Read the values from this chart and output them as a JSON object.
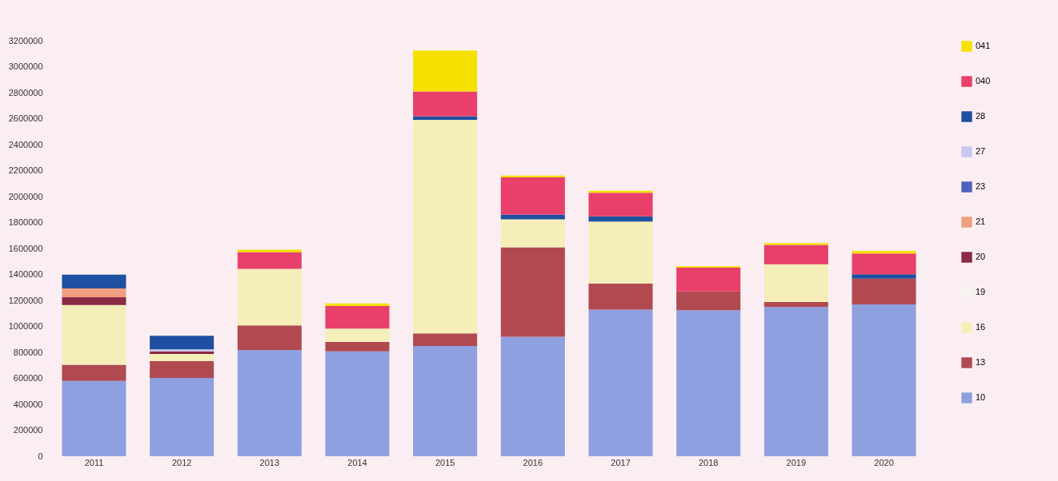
{
  "chart_data": {
    "type": "bar",
    "stacked": true,
    "categories": [
      "2011",
      "2012",
      "2013",
      "2014",
      "2015",
      "2016",
      "2017",
      "2018",
      "2019",
      "2020"
    ],
    "series": [
      {
        "name": "10",
        "color": "#8fa0e0",
        "values": [
          580000,
          603000,
          818000,
          808000,
          849000,
          920000,
          1130000,
          1125000,
          1150000,
          1170000
        ]
      },
      {
        "name": "13",
        "color": "#b04a50",
        "values": [
          125000,
          130000,
          190000,
          72000,
          97000,
          690000,
          201000,
          144000,
          37000,
          197000
        ]
      },
      {
        "name": "16",
        "color": "#f5eeb8",
        "values": [
          460000,
          55000,
          435000,
          103000,
          1645000,
          215000,
          476000,
          null,
          291000,
          null
        ]
      },
      {
        "name": "19",
        "color": "#f8f4f0",
        "values": [
          null,
          null,
          null,
          null,
          null,
          null,
          null,
          null,
          null,
          null
        ]
      },
      {
        "name": "20",
        "color": "#8b2a45",
        "values": [
          60000,
          20000,
          null,
          null,
          null,
          null,
          null,
          null,
          null,
          null
        ]
      },
      {
        "name": "21",
        "color": "#f0a080",
        "values": [
          68000,
          null,
          null,
          null,
          null,
          null,
          null,
          null,
          null,
          null
        ]
      },
      {
        "name": "23",
        "color": "#5060c0",
        "values": [
          null,
          null,
          null,
          null,
          null,
          null,
          null,
          null,
          null,
          null
        ]
      },
      {
        "name": "27",
        "color": "#c8c8f0",
        "values": [
          null,
          15000,
          null,
          null,
          null,
          null,
          null,
          null,
          null,
          null
        ]
      },
      {
        "name": "28",
        "color": "#1f4fa0",
        "values": [
          106000,
          105000,
          null,
          null,
          27000,
          37000,
          41000,
          null,
          null,
          35000
        ]
      },
      {
        "name": "040",
        "color": "#e8406a",
        "values": [
          null,
          null,
          130000,
          174000,
          192000,
          285000,
          181000,
          184000,
          150000,
          160000
        ]
      },
      {
        "name": "041",
        "color": "#f5e000",
        "values": [
          null,
          null,
          18000,
          20000,
          314000,
          15000,
          16000,
          10000,
          14000,
          19000
        ]
      }
    ],
    "ylim": [
      0,
      3200000
    ],
    "yticks": [
      0,
      200000,
      400000,
      600000,
      800000,
      1000000,
      1200000,
      1400000,
      1600000,
      1800000,
      2000000,
      2200000,
      2400000,
      2600000,
      2800000,
      3000000,
      3200000
    ],
    "grid": false,
    "legend": "right"
  }
}
